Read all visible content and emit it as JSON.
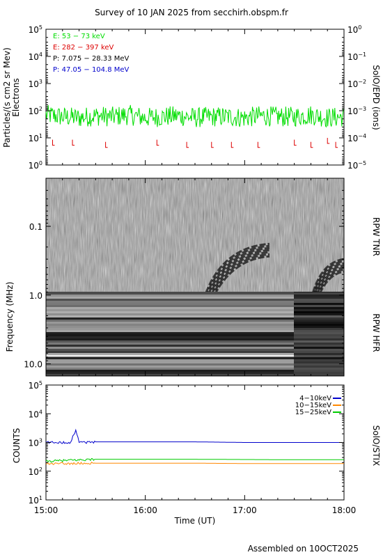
{
  "title": "Survey of 10 JAN 2025 from secchirh.obspm.fr",
  "footer": "Assembled on 10OCT2025",
  "panel1": {
    "ylabel_left": [
      "Particles/(s cm2 sr Mev)",
      "Electrons"
    ],
    "ylabel_right": "SolO/EPD (ions)",
    "left_ticks": [
      {
        "b": "10",
        "e": "5"
      },
      {
        "b": "10",
        "e": "4"
      },
      {
        "b": "10",
        "e": "3"
      },
      {
        "b": "10",
        "e": "2"
      },
      {
        "b": "10",
        "e": "1"
      },
      {
        "b": "10",
        "e": "0"
      }
    ],
    "right_ticks": [
      {
        "b": "10",
        "e": "0"
      },
      {
        "b": "10",
        "e": "−1"
      },
      {
        "b": "10",
        "e": "−2"
      },
      {
        "b": "10",
        "e": "−3"
      },
      {
        "b": "10",
        "e": "−4"
      },
      {
        "b": "10",
        "e": "−5"
      }
    ],
    "legend": [
      {
        "label": "E: 53 − 73 keV",
        "color": "#00dd00"
      },
      {
        "label": "E: 282 − 397 keV",
        "color": "#dd0000"
      },
      {
        "label": "P: 7.075 − 28.33 MeV",
        "color": "#000000"
      },
      {
        "label": "P: 47.05 − 104.8 MeV",
        "color": "#0000cc"
      }
    ]
  },
  "panel2": {
    "ylabel_left": "Frequency (MHz)",
    "ylabel_right_top": "RPW TNR",
    "ylabel_right_bottom": "RPW HFR",
    "ticks": [
      "0.1",
      "1.0",
      "10.0"
    ]
  },
  "panel3": {
    "ylabel_left": "COUNTS",
    "ylabel_right": "SolO/STIX",
    "ticks": [
      {
        "b": "10",
        "e": "5"
      },
      {
        "b": "10",
        "e": "4"
      },
      {
        "b": "10",
        "e": "3"
      },
      {
        "b": "10",
        "e": "2"
      },
      {
        "b": "10",
        "e": "1"
      }
    ],
    "legend": [
      {
        "label": "4−10keV",
        "color": "#0000cc"
      },
      {
        "label": "10−15keV",
        "color": "#ff8800"
      },
      {
        "label": "15−25keV",
        "color": "#00cc00"
      }
    ]
  },
  "x_axis": {
    "label": "Time (UT)",
    "ticks": [
      "15:00",
      "16:00",
      "17:00",
      "18:00"
    ]
  },
  "chart_data": [
    {
      "type": "line",
      "title": "Survey of 10 JAN 2025 from secchirh.obspm.fr",
      "xlabel": "",
      "ylabel": "Particles/(s cm2 sr Mev) Electrons",
      "yscale": "log",
      "ylim": [
        1,
        100000
      ],
      "xlim": [
        "15:00",
        "18:00"
      ],
      "series": [
        {
          "name": "E: 53 − 73 keV",
          "color": "#00dd00",
          "x": [
            "15:00",
            "15:10",
            "15:20",
            "15:30",
            "15:40",
            "15:50",
            "16:00",
            "16:10",
            "16:20",
            "16:30",
            "16:40",
            "16:50",
            "17:00",
            "17:10",
            "17:20",
            "17:30",
            "17:40",
            "17:50",
            "18:00"
          ],
          "values": [
            70,
            60,
            55,
            65,
            60,
            70,
            55,
            60,
            65,
            55,
            60,
            60,
            55,
            65,
            60,
            60,
            70,
            55,
            60
          ]
        },
        {
          "name": "E: 282 − 397 keV",
          "color": "#dd0000",
          "x": [
            "15:04",
            "15:16",
            "15:36",
            "16:07",
            "16:25",
            "16:40",
            "16:52",
            "17:08",
            "17:30",
            "17:40",
            "17:50",
            "17:55"
          ],
          "values": [
            6,
            6,
            5,
            6,
            5,
            5,
            5,
            5,
            6,
            5,
            7,
            5
          ]
        }
      ]
    },
    {
      "type": "heatmap",
      "title": "",
      "ylabel": "Frequency (MHz)",
      "ylim": [
        0.02,
        15
      ],
      "yscale": "log",
      "receivers": [
        "RPW TNR",
        "RPW HFR"
      ],
      "bursts": [
        {
          "start": "16:35",
          "end": "17:15",
          "freq_high": 0.18,
          "freq_low": 0.6
        },
        {
          "start": "17:40",
          "end": "18:00",
          "freq_high": 0.3,
          "freq_low": 0.6
        }
      ]
    },
    {
      "type": "line",
      "title": "",
      "ylabel": "COUNTS",
      "yscale": "log",
      "ylim": [
        10,
        100000
      ],
      "xlim": [
        "15:00",
        "18:00"
      ],
      "series": [
        {
          "name": "4−10keV",
          "color": "#0000cc",
          "x": [
            "15:00",
            "15:15",
            "15:18",
            "15:20",
            "15:25",
            "15:30",
            "16:00",
            "16:30",
            "17:00",
            "17:30",
            "18:00"
          ],
          "values": [
            1000,
            1000,
            2500,
            1100,
            1000,
            1050,
            1050,
            1050,
            1000,
            1000,
            1000
          ]
        },
        {
          "name": "10−15keV",
          "color": "#ff8800",
          "x": [
            "15:00",
            "15:30",
            "16:00",
            "16:30",
            "17:00",
            "17:30",
            "18:00"
          ],
          "values": [
            180,
            190,
            190,
            190,
            185,
            185,
            185
          ]
        },
        {
          "name": "15−25keV",
          "color": "#00cc00",
          "x": [
            "15:00",
            "15:30",
            "16:00",
            "16:30",
            "17:00",
            "17:30",
            "18:00"
          ],
          "values": [
            220,
            260,
            260,
            260,
            255,
            250,
            250
          ]
        }
      ]
    }
  ]
}
